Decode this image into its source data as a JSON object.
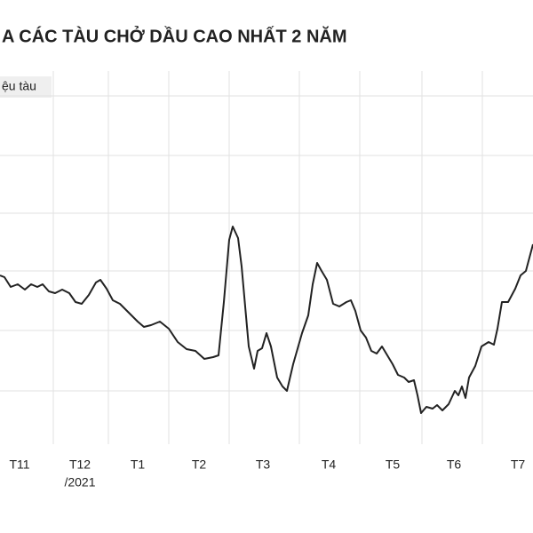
{
  "chart_data": {
    "type": "line",
    "title": "A CÁC TÀU CHỞ DẦU CAO NHẤT 2 NĂM",
    "y_label": "ệu tàu",
    "year_label": "/2021",
    "color": "#222222",
    "xlim": [
      0,
      600
    ],
    "ylim": [
      0,
      420
    ],
    "xticks": [
      {
        "value": 22,
        "label": "T11"
      },
      {
        "value": 90,
        "label": "T12"
      },
      {
        "value": 155,
        "label": "T1"
      },
      {
        "value": 224,
        "label": "T2"
      },
      {
        "value": 296,
        "label": "T3"
      },
      {
        "value": 370,
        "label": "T4"
      },
      {
        "value": 442,
        "label": "T5"
      },
      {
        "value": 511,
        "label": "T6"
      },
      {
        "value": 583,
        "label": "T7"
      }
    ],
    "xgrid": [
      60,
      122,
      190,
      258,
      337,
      405,
      475,
      543
    ],
    "yticks": [
      60,
      128,
      195,
      260,
      325,
      392
    ],
    "grid": true,
    "x": [
      0,
      5,
      12,
      20,
      28,
      35,
      42,
      48,
      55,
      62,
      70,
      78,
      85,
      92,
      100,
      108,
      113,
      120,
      127,
      135,
      145,
      155,
      162,
      170,
      180,
      190,
      200,
      210,
      220,
      230,
      240,
      246,
      252,
      258,
      262,
      268,
      272,
      276,
      280,
      286,
      290,
      295,
      300,
      305,
      312,
      318,
      323,
      330,
      340,
      347,
      352,
      357,
      362,
      368,
      375,
      382,
      390,
      395,
      400,
      406,
      412,
      418,
      424,
      430,
      436,
      442,
      448,
      455,
      460,
      466,
      470,
      474,
      480,
      487,
      492,
      498,
      505,
      512,
      516,
      520,
      524,
      528,
      535,
      542,
      550,
      556,
      560,
      565,
      572,
      580,
      586,
      592,
      596,
      600
    ],
    "values": [
      190,
      188,
      177,
      180,
      174,
      180,
      177,
      180,
      172,
      170,
      174,
      170,
      160,
      158,
      168,
      182,
      185,
      175,
      162,
      158,
      148,
      138,
      132,
      134,
      138,
      130,
      115,
      107,
      105,
      96,
      98,
      100,
      160,
      230,
      245,
      232,
      200,
      155,
      110,
      85,
      105,
      108,
      125,
      110,
      75,
      65,
      60,
      90,
      125,
      145,
      180,
      204,
      195,
      185,
      158,
      155,
      160,
      162,
      150,
      128,
      120,
      105,
      102,
      110,
      100,
      90,
      78,
      75,
      70,
      72,
      55,
      35,
      42,
      40,
      44,
      38,
      45,
      60,
      55,
      65,
      52,
      75,
      88,
      110,
      115,
      112,
      130,
      160,
      160,
      175,
      190,
      195,
      210,
      225
    ]
  }
}
